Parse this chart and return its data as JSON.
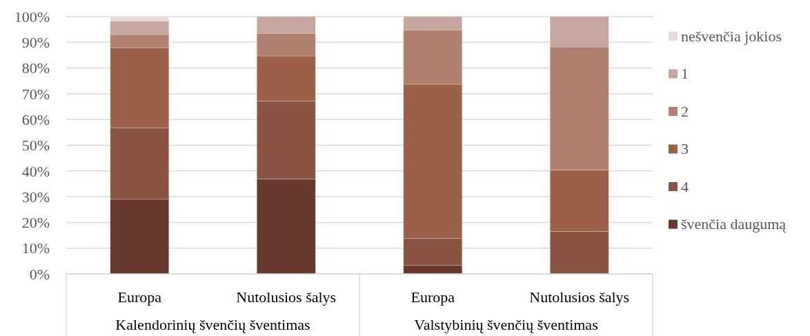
{
  "chart_data": {
    "type": "bar",
    "stacked": true,
    "categories": [
      "Europa",
      "Nutolusios šalys",
      "Europa",
      "Nutolusios šalys"
    ],
    "annotations": [
      "Kalendorinių švenčių šventimas",
      "Valstybinių švenčių šventimas"
    ],
    "series": [
      {
        "name": "švenčia daugumą",
        "color": "#66392f",
        "values": [
          29.0,
          36.9,
          3.3,
          0
        ]
      },
      {
        "name": "4",
        "color": "#8b5442",
        "values": [
          27.8,
          30.3,
          10.5,
          16.5
        ]
      },
      {
        "name": "3",
        "color": "#9c5f4a",
        "values": [
          31.1,
          17.5,
          59.9,
          23.9
        ]
      },
      {
        "name": "2",
        "color": "#b08070",
        "values": [
          5.1,
          8.8,
          21.1,
          47.8
        ]
      },
      {
        "name": "1",
        "color": "#c6a79f",
        "values": [
          5.3,
          6.5,
          5.2,
          11.8
        ]
      },
      {
        "name": "nešvenčia jokios",
        "color": "#e8dcda",
        "values": [
          1.7,
          0,
          0,
          0
        ]
      }
    ],
    "ylim": [
      0,
      100
    ],
    "yticks": [
      {
        "value": 0,
        "label": "0%"
      },
      {
        "value": 10,
        "label": "10%"
      },
      {
        "value": 20,
        "label": "20%"
      },
      {
        "value": 30,
        "label": "30%"
      },
      {
        "value": 40,
        "label": "40%"
      },
      {
        "value": 50,
        "label": "50%"
      },
      {
        "value": 60,
        "label": "60%"
      },
      {
        "value": 70,
        "label": "70%"
      },
      {
        "value": 80,
        "label": "80%"
      },
      {
        "value": 90,
        "label": "90%"
      },
      {
        "value": 100,
        "label": "100%"
      }
    ],
    "grid": "y",
    "legend": "right"
  }
}
